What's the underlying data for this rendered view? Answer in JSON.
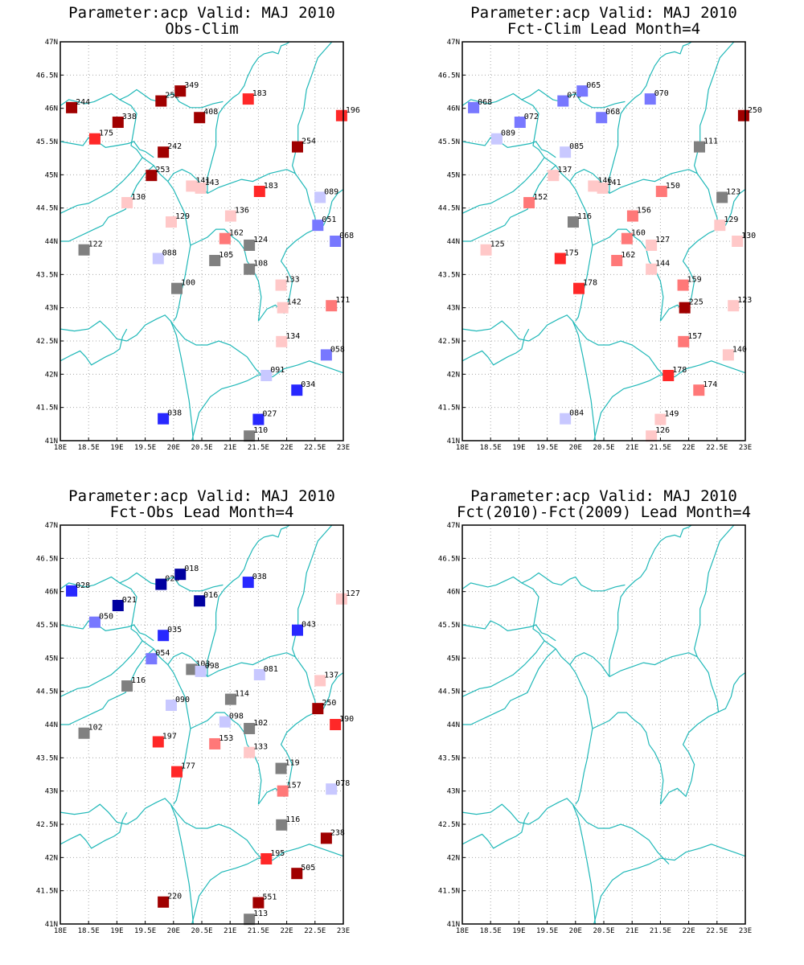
{
  "colors": {
    "border": "#20b8b8",
    "grid": "#a8a8a8",
    "neutral": "#808080",
    "pos": [
      "#ffc8c8",
      "#ff7878",
      "#ff2828",
      "#a00000"
    ],
    "neg": [
      "#c8c8ff",
      "#7878ff",
      "#2828ff",
      "#0000a0"
    ]
  },
  "axes": {
    "lon_ticks": [
      "18E",
      "18.5E",
      "19E",
      "19.5E",
      "20E",
      "20.5E",
      "21E",
      "21.5E",
      "22E",
      "22.5E",
      "23E"
    ],
    "lat_ticks": [
      "41N",
      "41.5N",
      "42N",
      "42.5N",
      "43N",
      "43.5N",
      "44N",
      "44.5N",
      "45N",
      "45.5N",
      "46N",
      "46.5N",
      "47N"
    ],
    "lon_range": [
      18,
      23
    ],
    "lat_range": [
      41,
      47
    ]
  },
  "panels": [
    {
      "title1": "Parameter:acp Valid: MAJ 2010",
      "title2": "Obs-Clim",
      "points": [
        {
          "lon": 18.2,
          "lat": 46.01,
          "label": "244",
          "c": "p4"
        },
        {
          "lon": 19.02,
          "lat": 45.79,
          "label": "338",
          "c": "p4"
        },
        {
          "lon": 18.61,
          "lat": 45.54,
          "label": "175",
          "c": "p3"
        },
        {
          "lon": 19.78,
          "lat": 46.11,
          "label": "252",
          "c": "p4"
        },
        {
          "lon": 20.12,
          "lat": 46.26,
          "label": "349",
          "c": "p4"
        },
        {
          "lon": 20.46,
          "lat": 45.86,
          "label": "408",
          "c": "p4"
        },
        {
          "lon": 19.82,
          "lat": 45.34,
          "label": "242",
          "c": "p4"
        },
        {
          "lon": 19.61,
          "lat": 44.99,
          "label": "253",
          "c": "p4"
        },
        {
          "lon": 21.32,
          "lat": 46.14,
          "label": "183",
          "c": "p3"
        },
        {
          "lon": 22.97,
          "lat": 45.89,
          "label": "196",
          "c": "p3"
        },
        {
          "lon": 22.19,
          "lat": 45.42,
          "label": "254",
          "c": "p4"
        },
        {
          "lon": 20.32,
          "lat": 44.83,
          "label": "141",
          "c": "p1"
        },
        {
          "lon": 20.48,
          "lat": 44.8,
          "label": "143",
          "c": "p1"
        },
        {
          "lon": 21.52,
          "lat": 44.75,
          "label": "183",
          "c": "p3"
        },
        {
          "lon": 19.18,
          "lat": 44.58,
          "label": "130",
          "c": "p1"
        },
        {
          "lon": 19.96,
          "lat": 44.29,
          "label": "129",
          "c": "p1"
        },
        {
          "lon": 21.01,
          "lat": 44.38,
          "label": "136",
          "c": "p1"
        },
        {
          "lon": 22.59,
          "lat": 44.66,
          "label": "089",
          "c": "n1"
        },
        {
          "lon": 22.55,
          "lat": 44.24,
          "label": "051",
          "c": "n2"
        },
        {
          "lon": 22.86,
          "lat": 44.0,
          "label": "068",
          "c": "n2"
        },
        {
          "lon": 20.91,
          "lat": 44.04,
          "label": "162",
          "c": "p2"
        },
        {
          "lon": 21.34,
          "lat": 43.94,
          "label": "124",
          "c": "n0"
        },
        {
          "lon": 18.42,
          "lat": 43.87,
          "label": "122",
          "c": "n0"
        },
        {
          "lon": 19.73,
          "lat": 43.74,
          "label": "088",
          "c": "n1"
        },
        {
          "lon": 20.73,
          "lat": 43.71,
          "label": "105",
          "c": "n0"
        },
        {
          "lon": 21.34,
          "lat": 43.58,
          "label": "108",
          "c": "n0"
        },
        {
          "lon": 20.06,
          "lat": 43.29,
          "label": "100",
          "c": "n0"
        },
        {
          "lon": 21.9,
          "lat": 43.34,
          "label": "133",
          "c": "p1"
        },
        {
          "lon": 21.93,
          "lat": 43.0,
          "label": "142",
          "c": "p1"
        },
        {
          "lon": 22.79,
          "lat": 43.03,
          "label": "171",
          "c": "p2"
        },
        {
          "lon": 21.91,
          "lat": 42.49,
          "label": "134",
          "c": "p1"
        },
        {
          "lon": 22.7,
          "lat": 42.29,
          "label": "058",
          "c": "n2"
        },
        {
          "lon": 21.64,
          "lat": 41.98,
          "label": "091",
          "c": "n1"
        },
        {
          "lon": 22.18,
          "lat": 41.76,
          "label": "034",
          "c": "n3"
        },
        {
          "lon": 19.82,
          "lat": 41.33,
          "label": "038",
          "c": "n3"
        },
        {
          "lon": 21.5,
          "lat": 41.32,
          "label": "027",
          "c": "n3"
        },
        {
          "lon": 21.34,
          "lat": 41.07,
          "label": "110",
          "c": "n0"
        }
      ]
    },
    {
      "title1": "Parameter:acp Valid: MAJ 2010",
      "title2": "Fct-Clim Lead Month=4",
      "points": [
        {
          "lon": 18.2,
          "lat": 46.01,
          "label": "068",
          "c": "n2"
        },
        {
          "lon": 19.02,
          "lat": 45.79,
          "label": "072",
          "c": "n2"
        },
        {
          "lon": 18.61,
          "lat": 45.54,
          "label": "089",
          "c": "n1"
        },
        {
          "lon": 19.78,
          "lat": 46.11,
          "label": "070",
          "c": "n2"
        },
        {
          "lon": 20.12,
          "lat": 46.26,
          "label": "065",
          "c": "n2"
        },
        {
          "lon": 20.46,
          "lat": 45.86,
          "label": "068",
          "c": "n2"
        },
        {
          "lon": 19.82,
          "lat": 45.34,
          "label": "085",
          "c": "n1"
        },
        {
          "lon": 19.61,
          "lat": 44.99,
          "label": "137",
          "c": "p1"
        },
        {
          "lon": 21.32,
          "lat": 46.14,
          "label": "070",
          "c": "n2"
        },
        {
          "lon": 22.97,
          "lat": 45.89,
          "label": "250",
          "c": "p4"
        },
        {
          "lon": 22.19,
          "lat": 45.42,
          "label": "111",
          "c": "n0"
        },
        {
          "lon": 20.32,
          "lat": 44.83,
          "label": "146",
          "c": "p1"
        },
        {
          "lon": 20.48,
          "lat": 44.8,
          "label": "141",
          "c": "p1"
        },
        {
          "lon": 21.52,
          "lat": 44.75,
          "label": "150",
          "c": "p2"
        },
        {
          "lon": 19.18,
          "lat": 44.58,
          "label": "152",
          "c": "p2"
        },
        {
          "lon": 19.96,
          "lat": 44.29,
          "label": "116",
          "c": "n0"
        },
        {
          "lon": 21.01,
          "lat": 44.38,
          "label": "156",
          "c": "p2"
        },
        {
          "lon": 22.59,
          "lat": 44.66,
          "label": "123",
          "c": "n0"
        },
        {
          "lon": 22.55,
          "lat": 44.24,
          "label": "129",
          "c": "p1"
        },
        {
          "lon": 22.86,
          "lat": 44.0,
          "label": "130",
          "c": "p1"
        },
        {
          "lon": 20.91,
          "lat": 44.04,
          "label": "160",
          "c": "p2"
        },
        {
          "lon": 21.34,
          "lat": 43.94,
          "label": "127",
          "c": "p1"
        },
        {
          "lon": 18.42,
          "lat": 43.87,
          "label": "125",
          "c": "p1"
        },
        {
          "lon": 19.73,
          "lat": 43.74,
          "label": "175",
          "c": "p3"
        },
        {
          "lon": 20.73,
          "lat": 43.71,
          "label": "162",
          "c": "p2"
        },
        {
          "lon": 21.34,
          "lat": 43.58,
          "label": "144",
          "c": "p1"
        },
        {
          "lon": 20.06,
          "lat": 43.29,
          "label": "178",
          "c": "p3"
        },
        {
          "lon": 21.9,
          "lat": 43.34,
          "label": "159",
          "c": "p2"
        },
        {
          "lon": 21.93,
          "lat": 43.0,
          "label": "225",
          "c": "p4"
        },
        {
          "lon": 22.79,
          "lat": 43.03,
          "label": "123",
          "c": "p1"
        },
        {
          "lon": 21.91,
          "lat": 42.49,
          "label": "157",
          "c": "p2"
        },
        {
          "lon": 22.7,
          "lat": 42.29,
          "label": "140",
          "c": "p1"
        },
        {
          "lon": 21.64,
          "lat": 41.98,
          "label": "178",
          "c": "p3"
        },
        {
          "lon": 22.18,
          "lat": 41.76,
          "label": "174",
          "c": "p2"
        },
        {
          "lon": 19.82,
          "lat": 41.33,
          "label": "084",
          "c": "n1"
        },
        {
          "lon": 21.5,
          "lat": 41.32,
          "label": "149",
          "c": "p1"
        },
        {
          "lon": 21.34,
          "lat": 41.07,
          "label": "126",
          "c": "p1"
        }
      ]
    },
    {
      "title1": "Parameter:acp Valid: MAJ 2010",
      "title2": "Fct-Obs Lead Month=4",
      "points": [
        {
          "lon": 18.2,
          "lat": 46.01,
          "label": "028",
          "c": "n3"
        },
        {
          "lon": 19.02,
          "lat": 45.79,
          "label": "021",
          "c": "n4"
        },
        {
          "lon": 18.61,
          "lat": 45.54,
          "label": "050",
          "c": "n2"
        },
        {
          "lon": 19.78,
          "lat": 46.11,
          "label": "028",
          "c": "n4"
        },
        {
          "lon": 20.12,
          "lat": 46.26,
          "label": "018",
          "c": "n4"
        },
        {
          "lon": 20.46,
          "lat": 45.86,
          "label": "016",
          "c": "n4"
        },
        {
          "lon": 19.82,
          "lat": 45.34,
          "label": "035",
          "c": "n3"
        },
        {
          "lon": 19.61,
          "lat": 44.99,
          "label": "054",
          "c": "n2"
        },
        {
          "lon": 21.32,
          "lat": 46.14,
          "label": "038",
          "c": "n3"
        },
        {
          "lon": 22.97,
          "lat": 45.89,
          "label": "127",
          "c": "p1"
        },
        {
          "lon": 22.19,
          "lat": 45.42,
          "label": "043",
          "c": "n3"
        },
        {
          "lon": 20.32,
          "lat": 44.83,
          "label": "103",
          "c": "n0"
        },
        {
          "lon": 20.48,
          "lat": 44.8,
          "label": "098",
          "c": "n1"
        },
        {
          "lon": 21.52,
          "lat": 44.75,
          "label": "081",
          "c": "n1"
        },
        {
          "lon": 19.18,
          "lat": 44.58,
          "label": "116",
          "c": "n0"
        },
        {
          "lon": 19.96,
          "lat": 44.29,
          "label": "090",
          "c": "n1"
        },
        {
          "lon": 21.01,
          "lat": 44.38,
          "label": "114",
          "c": "n0"
        },
        {
          "lon": 22.59,
          "lat": 44.66,
          "label": "137",
          "c": "p1"
        },
        {
          "lon": 22.55,
          "lat": 44.24,
          "label": "250",
          "c": "p4"
        },
        {
          "lon": 22.86,
          "lat": 44.0,
          "label": "190",
          "c": "p3"
        },
        {
          "lon": 20.91,
          "lat": 44.04,
          "label": "098",
          "c": "n1"
        },
        {
          "lon": 21.34,
          "lat": 43.94,
          "label": "102",
          "c": "n0"
        },
        {
          "lon": 18.42,
          "lat": 43.87,
          "label": "102",
          "c": "n0"
        },
        {
          "lon": 19.73,
          "lat": 43.74,
          "label": "197",
          "c": "p3"
        },
        {
          "lon": 20.73,
          "lat": 43.71,
          "label": "153",
          "c": "p2"
        },
        {
          "lon": 21.34,
          "lat": 43.58,
          "label": "133",
          "c": "p1"
        },
        {
          "lon": 20.06,
          "lat": 43.29,
          "label": "177",
          "c": "p3"
        },
        {
          "lon": 21.9,
          "lat": 43.34,
          "label": "119",
          "c": "n0"
        },
        {
          "lon": 21.93,
          "lat": 43.0,
          "label": "157",
          "c": "p2"
        },
        {
          "lon": 22.79,
          "lat": 43.03,
          "label": "078",
          "c": "n1"
        },
        {
          "lon": 21.91,
          "lat": 42.49,
          "label": "116",
          "c": "n0"
        },
        {
          "lon": 22.7,
          "lat": 42.29,
          "label": "238",
          "c": "p4"
        },
        {
          "lon": 21.64,
          "lat": 41.98,
          "label": "195",
          "c": "p3"
        },
        {
          "lon": 22.18,
          "lat": 41.76,
          "label": "505",
          "c": "p4"
        },
        {
          "lon": 19.82,
          "lat": 41.33,
          "label": "220",
          "c": "p4"
        },
        {
          "lon": 21.5,
          "lat": 41.32,
          "label": "551",
          "c": "p4"
        },
        {
          "lon": 21.34,
          "lat": 41.07,
          "label": "113",
          "c": "n0"
        }
      ]
    },
    {
      "title1": "Parameter:acp Valid: MAJ 2010",
      "title2": "Fct(2010)-Fct(2009) Lead Month=4",
      "points": []
    }
  ]
}
